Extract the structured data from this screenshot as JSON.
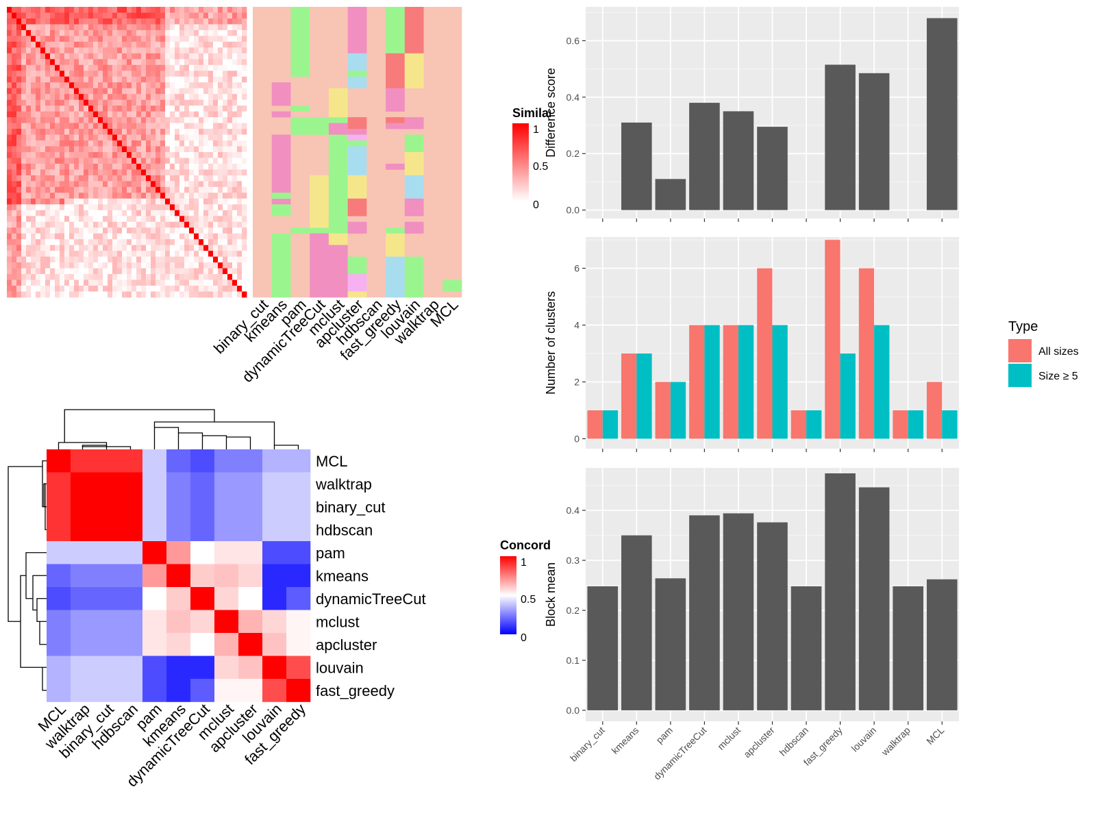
{
  "methods": [
    "binary_cut",
    "kmeans",
    "pam",
    "dynamicTreeCut",
    "mclust",
    "apcluster",
    "hdbscan",
    "fast_greedy",
    "louvain",
    "walktrap",
    "MCL"
  ],
  "colors": {
    "panel_bg": "#EBEBEB",
    "grid": "#FFFFFF",
    "bar": "#595959",
    "all_sizes": "#F8766D",
    "size5": "#00BFC4",
    "heat_high": "#FF0000",
    "heat_low": "#FFFFFF",
    "conc_low": "#0000FF",
    "cluster_pink": "#F08FC0",
    "cluster_green": "#9BF58F",
    "cluster_yellow": "#F5E68C",
    "cluster_cyan": "#A8DDF0",
    "cluster_salmon": "#F8C4B4",
    "cluster_red": "#F77B7B",
    "cluster_magenta": "#F6B2F0"
  },
  "similarity_heatmap": {
    "legend_title": "Similarity",
    "legend_labels": [
      "1",
      "0.5",
      "0"
    ],
    "size": 50,
    "column_labels": [
      "binary_cut",
      "kmeans",
      "pam",
      "dynamicTreeCut",
      "mclust",
      "apcluster",
      "hdbscan",
      "fast_greedy",
      "louvain",
      "walktrap",
      "MCL"
    ]
  },
  "concordance_heatmap": {
    "legend_title": "Concordance",
    "legend_labels": [
      "1",
      "0.5",
      "0"
    ],
    "order": [
      "MCL",
      "walktrap",
      "binary_cut",
      "hdbscan",
      "pam",
      "kmeans",
      "dynamicTreeCut",
      "mclust",
      "apcluster",
      "louvain",
      "fast_greedy"
    ],
    "matrix": [
      [
        1.0,
        0.9,
        0.9,
        0.9,
        0.4,
        0.2,
        0.15,
        0.25,
        0.25,
        0.35,
        0.35
      ],
      [
        0.9,
        1.0,
        1.0,
        1.0,
        0.4,
        0.25,
        0.2,
        0.3,
        0.3,
        0.4,
        0.4
      ],
      [
        0.9,
        1.0,
        1.0,
        1.0,
        0.4,
        0.25,
        0.2,
        0.3,
        0.3,
        0.4,
        0.4
      ],
      [
        0.9,
        1.0,
        1.0,
        1.0,
        0.4,
        0.25,
        0.2,
        0.3,
        0.3,
        0.4,
        0.4
      ],
      [
        0.4,
        0.4,
        0.4,
        0.4,
        1.0,
        0.7,
        0.5,
        0.55,
        0.55,
        0.15,
        0.15
      ],
      [
        0.2,
        0.25,
        0.25,
        0.25,
        0.7,
        1.0,
        0.6,
        0.62,
        0.58,
        0.08,
        0.08
      ],
      [
        0.15,
        0.2,
        0.2,
        0.2,
        0.5,
        0.6,
        1.0,
        0.58,
        0.5,
        0.08,
        0.18
      ],
      [
        0.25,
        0.3,
        0.3,
        0.3,
        0.55,
        0.62,
        0.58,
        1.0,
        0.65,
        0.58,
        0.52
      ],
      [
        0.25,
        0.3,
        0.3,
        0.3,
        0.55,
        0.58,
        0.5,
        0.65,
        1.0,
        0.62,
        0.52
      ],
      [
        0.35,
        0.4,
        0.4,
        0.4,
        0.15,
        0.08,
        0.08,
        0.58,
        0.62,
        1.0,
        0.85
      ],
      [
        0.35,
        0.4,
        0.4,
        0.4,
        0.15,
        0.08,
        0.18,
        0.52,
        0.52,
        0.85,
        1.0
      ]
    ]
  },
  "chart_data": [
    {
      "type": "bar",
      "ylabel": "Difference score",
      "categories": [
        "binary_cut",
        "kmeans",
        "pam",
        "dynamicTreeCut",
        "mclust",
        "apcluster",
        "hdbscan",
        "fast_greedy",
        "louvain",
        "walktrap",
        "MCL"
      ],
      "values": [
        0,
        0.31,
        0.11,
        0.38,
        0.35,
        0.295,
        0,
        0.515,
        0.485,
        0,
        0.68
      ],
      "ylim": [
        -0.03,
        0.72
      ],
      "yticks": [
        "0.0",
        "0.2",
        "0.4",
        "0.6"
      ],
      "grid": true
    },
    {
      "type": "bar",
      "ylabel": "Number of clusters",
      "categories": [
        "binary_cut",
        "kmeans",
        "pam",
        "dynamicTreeCut",
        "mclust",
        "apcluster",
        "hdbscan",
        "fast_greedy",
        "louvain",
        "walktrap",
        "MCL"
      ],
      "series": [
        {
          "name": "All sizes",
          "values": [
            1,
            3,
            2,
            4,
            4,
            6,
            1,
            7,
            6,
            1,
            2
          ]
        },
        {
          "name": "Size ≥ 5",
          "values": [
            1,
            3,
            2,
            4,
            4,
            4,
            1,
            3,
            4,
            1,
            1
          ]
        }
      ],
      "ylim": [
        -0.35,
        7.1
      ],
      "yticks": [
        "0",
        "2",
        "4",
        "6"
      ],
      "legend_title": "Type",
      "legend_position": "right",
      "grid": true
    },
    {
      "type": "bar",
      "ylabel": "Block mean",
      "categories": [
        "binary_cut",
        "kmeans",
        "pam",
        "dynamicTreeCut",
        "mclust",
        "apcluster",
        "hdbscan",
        "fast_greedy",
        "louvain",
        "walktrap",
        "MCL"
      ],
      "values": [
        0.248,
        0.35,
        0.264,
        0.39,
        0.394,
        0.376,
        0.248,
        0.474,
        0.446,
        0.248,
        0.262
      ],
      "ylim": [
        -0.022,
        0.485
      ],
      "yticks": [
        "0.0",
        "0.1",
        "0.2",
        "0.3",
        "0.4"
      ],
      "grid": true
    }
  ]
}
